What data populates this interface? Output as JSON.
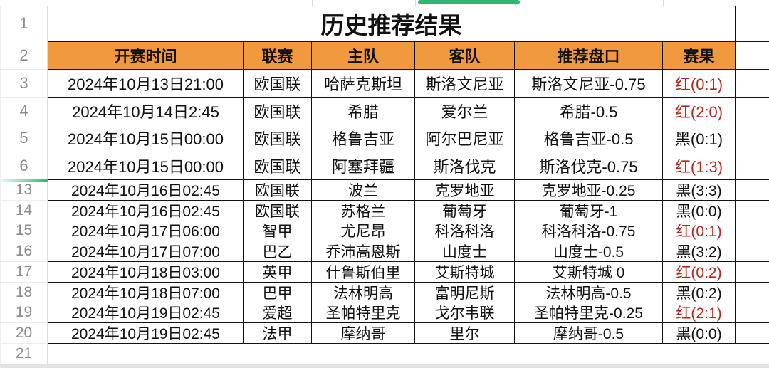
{
  "sheet": {
    "title": "历史推荐结果",
    "columns": [
      "开赛时间",
      "联赛",
      "主队",
      "客队",
      "推荐盘口",
      "赛果"
    ],
    "row_numbers": [
      "1",
      "2",
      "3",
      "4",
      "5",
      "6",
      "13",
      "14",
      "15",
      "16",
      "17",
      "18",
      "19",
      "20",
      "21"
    ],
    "rows": [
      {
        "time": "2024年10月13日21:00",
        "league": "欧国联",
        "home": "哈萨克斯坦",
        "away": "斯洛文尼亚",
        "handicap": "斯洛文尼亚-0.75",
        "result": "红(0:1)",
        "result_color": "red"
      },
      {
        "time": "2024年10月14日2:45",
        "league": "欧国联",
        "home": "希腊",
        "away": "爱尔兰",
        "handicap": "希腊-0.5",
        "result": "红(2:0)",
        "result_color": "red"
      },
      {
        "time": "2024年10月15日00:00",
        "league": "欧国联",
        "home": "格鲁吉亚",
        "away": "阿尔巴尼亚",
        "handicap": "格鲁吉亚-0.5",
        "result": "黑(0:1)",
        "result_color": "black"
      },
      {
        "time": "2024年10月15日00:00",
        "league": "欧国联",
        "home": "阿塞拜疆",
        "away": "斯洛伐克",
        "handicap": "斯洛伐克-0.75",
        "result": "红(1:3)",
        "result_color": "red"
      },
      {
        "time": "2024年10月16日02:45",
        "league": "欧国联",
        "home": "波兰",
        "away": "克罗地亚",
        "handicap": "克罗地亚-0.25",
        "result": "黑(3:3)",
        "result_color": "black"
      },
      {
        "time": "2024年10月16日02:45",
        "league": "欧国联",
        "home": "苏格兰",
        "away": "葡萄牙",
        "handicap": "葡萄牙-1",
        "result": "黑(0:0)",
        "result_color": "black"
      },
      {
        "time": "2024年10月17日06:00",
        "league": "智甲",
        "home": "尤尼昂",
        "away": "科洛科洛",
        "handicap": "科洛科洛-0.75",
        "result": "红(0:1)",
        "result_color": "red"
      },
      {
        "time": "2024年10月17日07:00",
        "league": "巴乙",
        "home": "乔沛高恩斯",
        "away": "山度士",
        "handicap": "山度士-0.5",
        "result": "黑(3:2)",
        "result_color": "black"
      },
      {
        "time": "2024年10月18日03:00",
        "league": "英甲",
        "home": "什鲁斯伯里",
        "away": "艾斯特城",
        "handicap": "艾斯特城  0",
        "result": "红(0:2)",
        "result_color": "red"
      },
      {
        "time": "2024年10月18日07:00",
        "league": "巴甲",
        "home": "法林明高",
        "away": "富明尼斯",
        "handicap": "法林明高-0.5",
        "result": "黑(0:2)",
        "result_color": "black"
      },
      {
        "time": "2024年10月19日02:45",
        "league": "爱超",
        "home": "圣帕特里克",
        "away": "戈尔韦联",
        "handicap": "圣帕特里克-0.25",
        "result": "红(2:1)",
        "result_color": "red"
      },
      {
        "time": "2024年10月19日02:45",
        "league": "法甲",
        "home": "摩纳哥",
        "away": "里尔",
        "handicap": "摩纳哥-0.5",
        "result": "黑(0:0)",
        "result_color": "black"
      }
    ],
    "colors": {
      "header_bg": "#F0993E",
      "result_red": "#B3271E",
      "text_black": "#111111",
      "accent_green": "#2EB872",
      "row_number_gray": "#8C8C8C"
    }
  }
}
